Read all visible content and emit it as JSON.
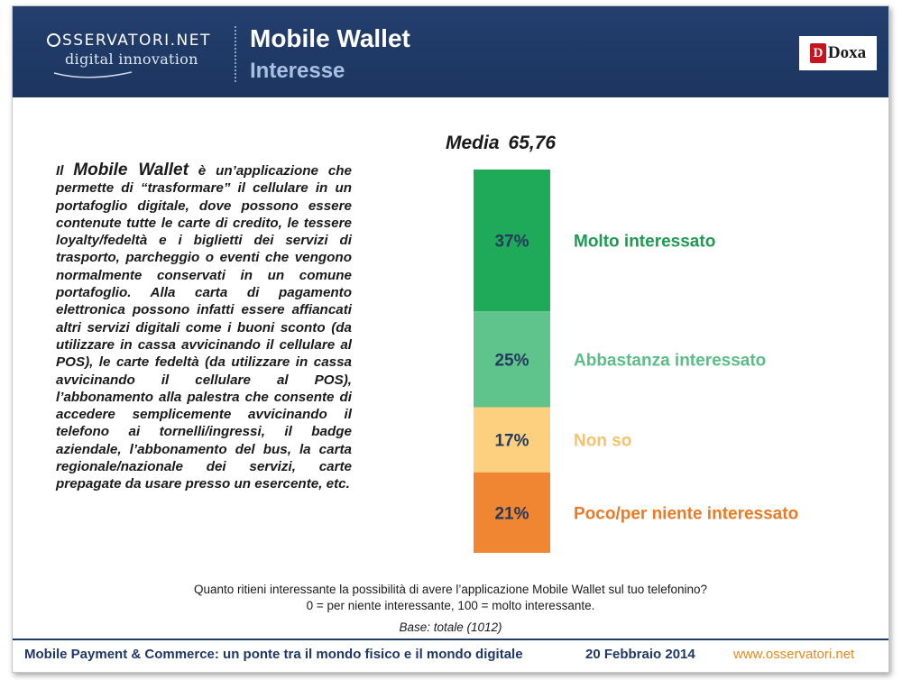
{
  "header": {
    "logo_top": "SSERVATORI.NET",
    "logo_bottom": "digital innovation",
    "title": "Mobile Wallet",
    "subtitle": "Interesse",
    "brand": "Doxa",
    "brand_mark": "D"
  },
  "body": {
    "intro_prefix": "Il ",
    "intro_term": "Mobile Wallet",
    "intro_text": " è un’applicazione che permette di “trasformare” il cellulare in un portafoglio digitale, dove possono essere contenute tutte le carte di credito, le tessere loyalty/fedeltà e i biglietti dei servizi di trasporto, parcheggio o eventi che vengono normalmente conservati in un comune portafoglio. Alla carta di pagamento elettronica possono infatti essere affiancati altri servizi digitali come i buoni sconto (da utilizzare in cassa avvicinando il cellulare al POS), le carte fedeltà (da utilizzare in cassa avvicinando il cellulare al POS), l’abbonamento alla palestra che consente di accedere semplicemente avvicinando il telefono ai tornelli/ingressi, il badge aziendale, l’abbonamento del bus, la carta regionale/nazionale dei servizi, carte prepagate da usare presso un esercente, etc."
  },
  "media": {
    "label": "Media",
    "value": "65,76"
  },
  "chart_data": {
    "type": "bar",
    "stacked": true,
    "orientation": "vertical",
    "categories": [
      "Molto interessato",
      "Abbastanza interessato",
      "Non so",
      "Poco/per niente interessato"
    ],
    "values": [
      37,
      25,
      17,
      21
    ],
    "value_labels": [
      "37%",
      "25%",
      "17%",
      "21%"
    ],
    "colors": [
      "#1faa59",
      "#5ec48c",
      "#fdd07f",
      "#f08632"
    ],
    "label_colors": [
      "#1e9b50",
      "#5bbd87",
      "#f6c36b",
      "#ec7a24"
    ],
    "ylim": [
      0,
      100
    ]
  },
  "question": {
    "line1": "Quanto ritieni interessante la possibilità di avere l’applicazione Mobile Wallet sul tuo telefonino?",
    "line2": "0 = per niente interessante, 100 = molto interessante."
  },
  "base": "Base: totale (1012)",
  "footer": {
    "left": "Mobile Payment & Commerce: un ponte tra il mondo fisico e il mondo digitale",
    "date": "20 Febbraio 2014",
    "url": "www.osservatori.net"
  }
}
